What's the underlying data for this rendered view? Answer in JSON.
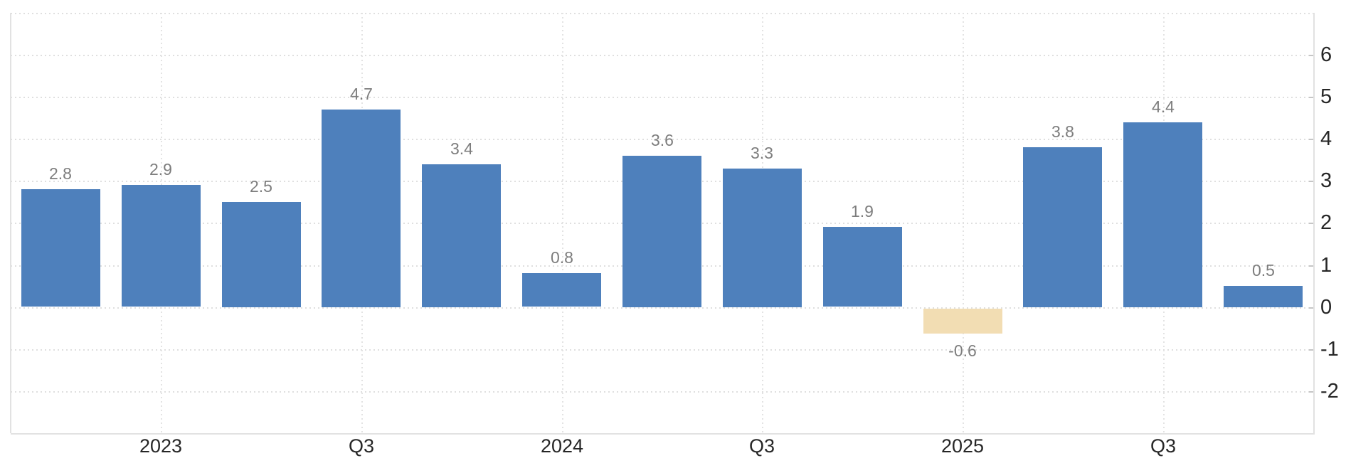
{
  "chart_data": {
    "type": "bar",
    "series": [
      {
        "name": "values",
        "values": [
          2.8,
          2.9,
          2.5,
          4.7,
          3.4,
          0.8,
          3.6,
          3.3,
          1.9,
          -0.6,
          3.8,
          4.4,
          0.5
        ]
      }
    ],
    "value_labels": [
      "2.8",
      "2.9",
      "2.5",
      "4.7",
      "3.4",
      "0.8",
      "3.6",
      "3.3",
      "1.9",
      "-0.6",
      "3.8",
      "4.4",
      "0.5"
    ],
    "highlighted_bar_index": 9,
    "x_ticks": [
      {
        "label": "2023",
        "bar_index": 1
      },
      {
        "label": "Q3",
        "bar_index": 3
      },
      {
        "label": "2024",
        "bar_index": 5
      },
      {
        "label": "Q3",
        "bar_index": 7
      },
      {
        "label": "2025",
        "bar_index": 9
      },
      {
        "label": "Q3",
        "bar_index": 11
      }
    ],
    "y_axis": {
      "side": "right",
      "tick_labels": [
        "6",
        "5",
        "4",
        "3",
        "2",
        "1",
        "0",
        "-1",
        "-2"
      ],
      "tick_values": [
        6,
        5,
        4,
        3,
        2,
        1,
        0,
        -1,
        -2
      ],
      "min": -3,
      "max": 7
    },
    "grid": {
      "horizontal": "dotted",
      "vertical": "dotted-at-x-ticks"
    },
    "legend": "none",
    "title": "",
    "colors": {
      "bar": "#4e80bc",
      "bar_highlight": "#f2ddb3",
      "grid_line": "#e0e0e0",
      "axis_line": "#e2e2e2",
      "tick_mark": "#c6c6c6",
      "value_label": "#7d7d7d",
      "axis_label": "#262626",
      "background": "#ffffff"
    }
  }
}
